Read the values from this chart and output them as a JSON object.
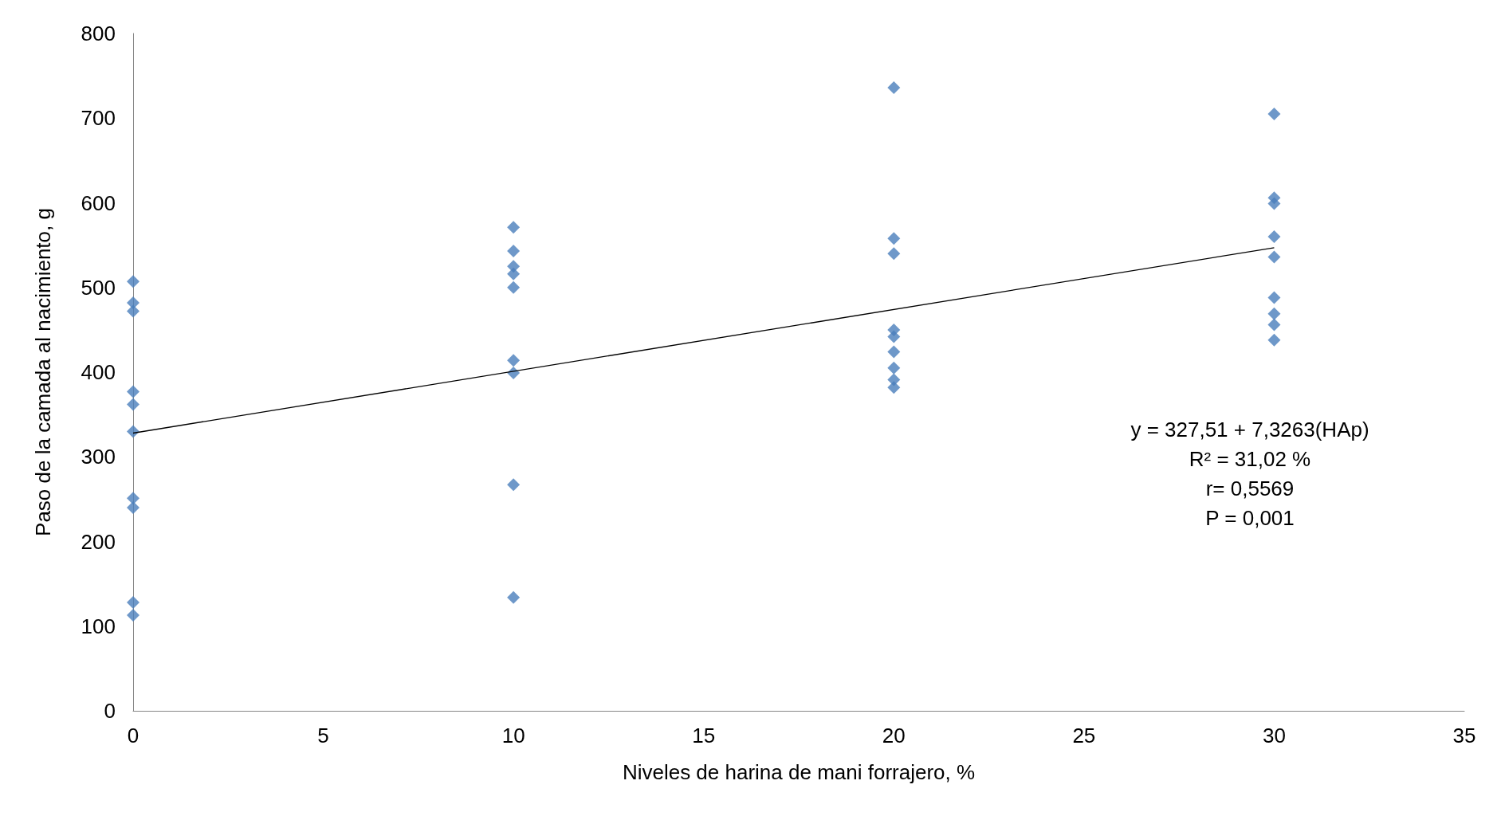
{
  "chart_data": {
    "type": "scatter",
    "xlabel": "Niveles de harina de mani forrajero, %",
    "ylabel": "Paso de la camada al nacimiento, g",
    "xlim": [
      0,
      35
    ],
    "xticks": [
      0,
      5,
      10,
      15,
      20,
      25,
      30,
      35
    ],
    "ylim": [
      0,
      800
    ],
    "yticks": [
      0,
      100,
      200,
      300,
      400,
      500,
      600,
      700,
      800
    ],
    "grid": false,
    "marker": "diamond",
    "annotations": [
      "y = 327,51 + 7,3263(HAp)",
      "R² = 31,02 %",
      "r= 0,5569",
      "P = 0,001"
    ],
    "series": [
      {
        "color": "#4a7ebb",
        "x": [
          0,
          0,
          0,
          0,
          0,
          0,
          0,
          0,
          0,
          0,
          10,
          10,
          10,
          10,
          10,
          10,
          10,
          10,
          10,
          20,
          20,
          20,
          20,
          20,
          20,
          20,
          20,
          20,
          30,
          30,
          30,
          30,
          30,
          30,
          30,
          30,
          30
        ],
        "values": [
          507,
          482,
          472,
          377,
          362,
          330,
          251,
          240,
          128,
          113,
          571,
          543,
          525,
          516,
          500,
          414,
          399,
          267,
          134,
          736,
          558,
          540,
          450,
          442,
          424,
          405,
          391,
          382,
          705,
          606,
          599,
          560,
          536,
          488,
          469,
          456,
          438
        ]
      },
      {
        "type": "line",
        "color": "#000000",
        "marker": "none",
        "x": [
          0,
          30
        ],
        "values": [
          328,
          547
        ]
      }
    ]
  }
}
